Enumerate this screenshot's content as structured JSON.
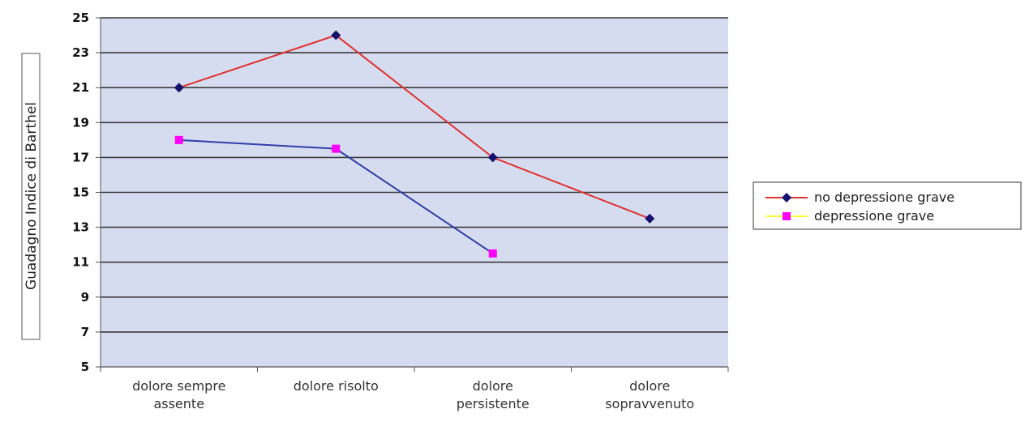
{
  "chart_data": {
    "type": "line",
    "title": "",
    "xlabel": "",
    "ylabel": "Guadagno Indice di Barthel",
    "categories": [
      [
        "dolore sempre",
        "assente"
      ],
      [
        "dolore risolto"
      ],
      [
        "dolore",
        "persistente"
      ],
      [
        "dolore",
        "sopravvenuto"
      ]
    ],
    "ylim": [
      5,
      25
    ],
    "yticks": [
      5,
      7,
      9,
      11,
      13,
      15,
      17,
      19,
      21,
      23,
      25
    ],
    "grid": true,
    "legend_position": "right",
    "series": [
      {
        "name": "no depressione grave",
        "values": [
          21,
          24,
          17,
          13.5
        ],
        "line_color": "#e0302f",
        "marker": "diamond",
        "marker_color": "#12126e"
      },
      {
        "name": "depressione grave",
        "values": [
          18,
          17.5,
          11.5,
          null
        ],
        "line_color": "#2f3ea8",
        "marker": "square",
        "marker_color": "#ff00ff",
        "legend_line_color": "#ffff33"
      }
    ],
    "colors": {
      "plot_background": "#d6dcf0",
      "gridline": "#3a3a3a",
      "axis": "#555555"
    }
  }
}
